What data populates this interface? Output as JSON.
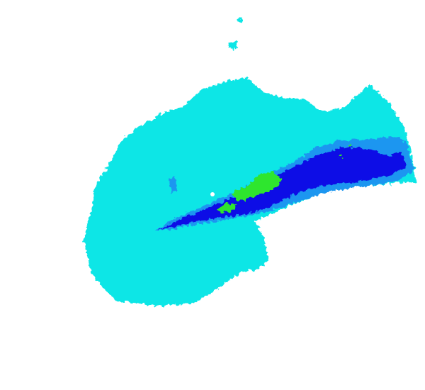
{
  "map": {
    "kind": "weather-radar-reflectivity-sweep",
    "background": "#ffffff",
    "legend_visible": false,
    "labels_visible": false
  },
  "palette": {
    "cyan": "#0ae6e6",
    "light_blue": "#1e96f0",
    "blue": "#0a0ae6",
    "green": "#2ee62e",
    "radar_site": "#ffffff"
  },
  "layers": [
    {
      "name": "coverage-echo",
      "color_key": "cyan"
    },
    {
      "name": "moderate-echo",
      "color_key": "light_blue"
    },
    {
      "name": "strong-echo",
      "color_key": "blue"
    },
    {
      "name": "intense-echo",
      "color_key": "green"
    }
  ]
}
